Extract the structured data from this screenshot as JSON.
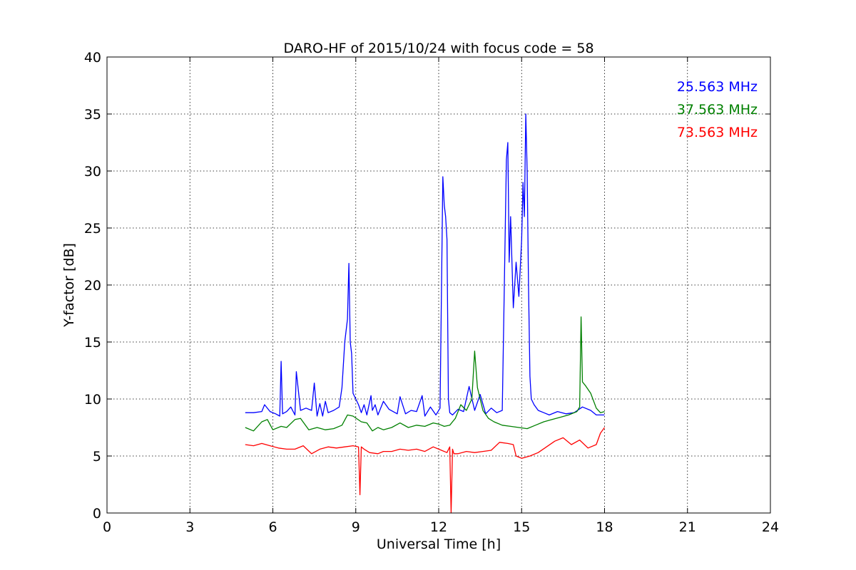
{
  "chart_data": {
    "type": "line",
    "title": "DARO-HF of 2015/10/24 with focus code = 58",
    "xlabel": "Universal Time [h]",
    "ylabel": "Y-factor [dB]",
    "xlim": [
      0,
      24
    ],
    "ylim": [
      0,
      40
    ],
    "xticks": [
      0,
      3,
      6,
      9,
      12,
      15,
      18,
      21,
      24
    ],
    "yticks": [
      0,
      5,
      10,
      15,
      20,
      25,
      30,
      35,
      40
    ],
    "grid": true,
    "legend": "top-right",
    "series": [
      {
        "name": "25.563 MHz",
        "color": "#0000ff",
        "x": [
          5.0,
          5.3,
          5.6,
          5.7,
          5.9,
          6.1,
          6.25,
          6.3,
          6.35,
          6.5,
          6.65,
          6.8,
          6.85,
          7.0,
          7.2,
          7.4,
          7.5,
          7.6,
          7.7,
          7.8,
          7.9,
          8.0,
          8.2,
          8.4,
          8.5,
          8.6,
          8.7,
          8.75,
          8.8,
          8.85,
          8.9,
          9.0,
          9.1,
          9.2,
          9.3,
          9.4,
          9.55,
          9.6,
          9.7,
          9.8,
          10.0,
          10.2,
          10.5,
          10.6,
          10.8,
          11.0,
          11.2,
          11.4,
          11.5,
          11.7,
          11.9,
          12.05,
          12.15,
          12.2,
          12.25,
          12.3,
          12.35,
          12.4,
          12.5,
          12.7,
          12.9,
          13.1,
          13.3,
          13.5,
          13.7,
          13.9,
          14.1,
          14.3,
          14.35,
          14.45,
          14.5,
          14.55,
          14.6,
          14.7,
          14.8,
          14.9,
          15.0,
          15.05,
          15.1,
          15.15,
          15.2,
          15.25,
          15.3,
          15.35,
          15.45,
          15.6,
          15.8,
          16.0,
          16.3,
          16.6,
          16.9,
          17.2,
          17.5,
          17.7,
          18.0
        ],
        "y": [
          8.8,
          8.8,
          8.9,
          9.5,
          8.9,
          8.7,
          8.5,
          13.3,
          8.7,
          8.9,
          9.3,
          8.6,
          12.4,
          9.0,
          9.2,
          9.0,
          11.4,
          8.5,
          9.6,
          8.5,
          9.8,
          8.8,
          9.0,
          9.3,
          11.0,
          15.0,
          17.0,
          21.9,
          15.0,
          14.0,
          10.5,
          10.0,
          9.5,
          8.8,
          9.5,
          8.6,
          10.3,
          9.0,
          9.5,
          8.6,
          9.8,
          9.1,
          8.7,
          10.2,
          8.7,
          9.0,
          8.9,
          10.3,
          8.5,
          9.3,
          8.6,
          9.2,
          29.5,
          27.0,
          26.0,
          24.0,
          10.0,
          8.8,
          8.6,
          9.1,
          8.9,
          11.1,
          9.0,
          10.4,
          8.7,
          9.2,
          8.8,
          9.0,
          16.5,
          31.0,
          32.5,
          22.0,
          26.0,
          18.0,
          22.0,
          19.0,
          24.0,
          29.0,
          26.0,
          35.0,
          30.0,
          20.0,
          12.0,
          10.0,
          9.5,
          9.0,
          8.8,
          8.6,
          8.9,
          8.7,
          8.8,
          9.3,
          9.0,
          8.6,
          8.6
        ]
      },
      {
        "name": "37.563 MHz",
        "color": "#008000",
        "x": [
          5.0,
          5.3,
          5.6,
          5.8,
          6.0,
          6.3,
          6.5,
          6.8,
          7.0,
          7.3,
          7.6,
          7.9,
          8.2,
          8.5,
          8.7,
          8.9,
          9.2,
          9.4,
          9.6,
          9.8,
          10.0,
          10.3,
          10.6,
          10.9,
          11.2,
          11.5,
          11.8,
          12.0,
          12.2,
          12.4,
          12.6,
          12.8,
          13.0,
          13.2,
          13.3,
          13.4,
          13.6,
          13.8,
          14.0,
          14.3,
          14.6,
          14.9,
          15.2,
          15.5,
          15.8,
          16.1,
          16.4,
          16.7,
          17.0,
          17.1,
          17.15,
          17.2,
          17.3,
          17.5,
          17.7,
          17.85,
          18.0
        ],
        "y": [
          7.5,
          7.2,
          8.0,
          8.2,
          7.3,
          7.6,
          7.5,
          8.2,
          8.3,
          7.3,
          7.5,
          7.3,
          7.4,
          7.7,
          8.6,
          8.5,
          8.0,
          7.9,
          7.2,
          7.5,
          7.3,
          7.5,
          7.9,
          7.5,
          7.7,
          7.6,
          7.9,
          7.8,
          7.6,
          7.7,
          8.3,
          9.5,
          9.0,
          10.0,
          14.2,
          11.0,
          9.0,
          8.3,
          8.0,
          7.7,
          7.6,
          7.5,
          7.4,
          7.7,
          8.0,
          8.2,
          8.4,
          8.6,
          8.9,
          9.3,
          17.2,
          11.5,
          11.2,
          10.5,
          9.2,
          8.8,
          8.9
        ]
      },
      {
        "name": "73.563 MHz",
        "color": "#ff0000",
        "x": [
          5.0,
          5.3,
          5.6,
          5.9,
          6.2,
          6.5,
          6.8,
          7.1,
          7.4,
          7.7,
          8.0,
          8.3,
          8.6,
          8.9,
          9.1,
          9.15,
          9.2,
          9.3,
          9.5,
          9.8,
          10.0,
          10.3,
          10.6,
          10.9,
          11.2,
          11.5,
          11.8,
          12.1,
          12.3,
          12.4,
          12.45,
          12.5,
          12.55,
          12.7,
          13.0,
          13.3,
          13.6,
          13.9,
          14.2,
          14.5,
          14.7,
          14.8,
          15.0,
          15.3,
          15.6,
          15.9,
          16.2,
          16.5,
          16.8,
          17.1,
          17.4,
          17.7,
          17.85,
          18.0
        ],
        "y": [
          6.0,
          5.9,
          6.1,
          5.9,
          5.7,
          5.6,
          5.6,
          5.9,
          5.2,
          5.6,
          5.8,
          5.7,
          5.8,
          5.9,
          5.8,
          1.6,
          5.8,
          5.6,
          5.3,
          5.2,
          5.4,
          5.4,
          5.6,
          5.5,
          5.6,
          5.4,
          5.8,
          5.5,
          5.3,
          5.8,
          0.0,
          5.6,
          5.2,
          5.2,
          5.4,
          5.3,
          5.4,
          5.5,
          6.2,
          6.1,
          6.0,
          5.0,
          4.8,
          5.0,
          5.3,
          5.8,
          6.3,
          6.6,
          6.0,
          6.4,
          5.7,
          6.0,
          7.0,
          7.5
        ]
      }
    ]
  }
}
